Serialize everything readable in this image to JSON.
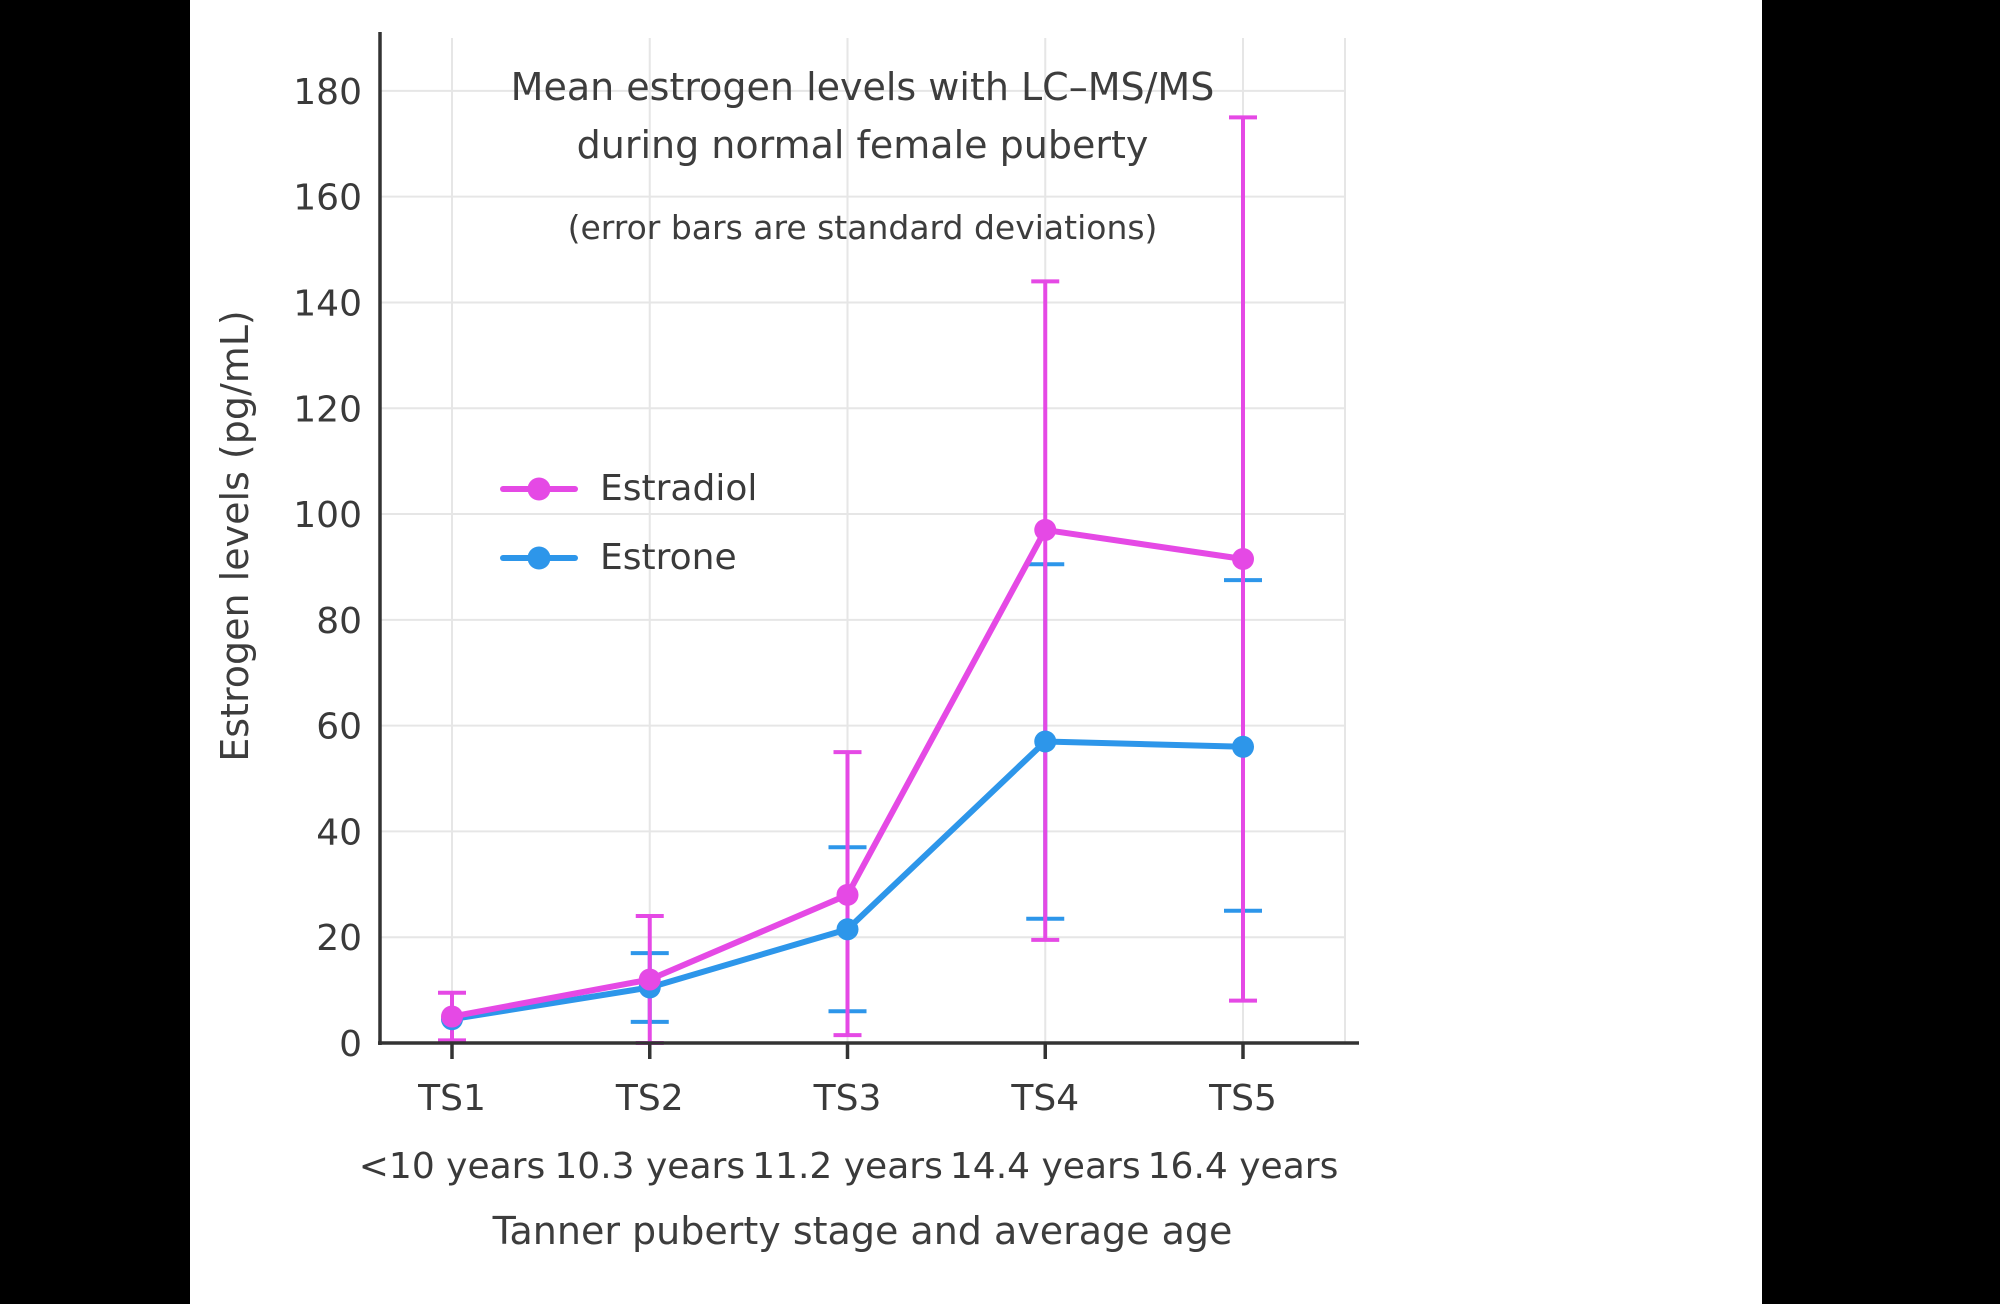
{
  "page": {
    "background": "#000000",
    "panel_background": "#ffffff",
    "text_color": "#3d3d3d",
    "grid_color": "#e6e6e6",
    "axis_color": "#333333"
  },
  "chart_data": {
    "type": "line",
    "title_lines": [
      "Mean estrogen levels with LC–MS/MS",
      "during normal female puberty"
    ],
    "subtitle": "(error bars are standard deviations)",
    "xlabel": "Tanner puberty stage and average age",
    "ylabel": "Estrogen levels (pg/mL)",
    "ylim": [
      0,
      190
    ],
    "yticks": [
      0,
      20,
      40,
      60,
      80,
      100,
      120,
      140,
      160,
      180
    ],
    "grid": true,
    "legend_position": "upper-left-inside",
    "categories": [
      "TS1",
      "TS2",
      "TS3",
      "TS4",
      "TS5"
    ],
    "category_sublabels": [
      "<10 years",
      "10.3 years",
      "11.2 years",
      "14.4 years",
      "16.4 years"
    ],
    "series": [
      {
        "name": "Estradiol",
        "color": "#e549e5",
        "values": [
          5,
          12,
          28,
          97,
          91.5
        ],
        "err_low": [
          0.5,
          0,
          1.5,
          19.5,
          8
        ],
        "err_high": [
          9.5,
          24,
          55,
          144,
          175
        ]
      },
      {
        "name": "Estrone",
        "color": "#2d96ea",
        "values": [
          4.5,
          10.5,
          21.5,
          57,
          56
        ],
        "err_low": [
          null,
          4,
          6,
          23.5,
          25
        ],
        "err_high": [
          null,
          17,
          37,
          90.5,
          87.5
        ]
      }
    ]
  }
}
